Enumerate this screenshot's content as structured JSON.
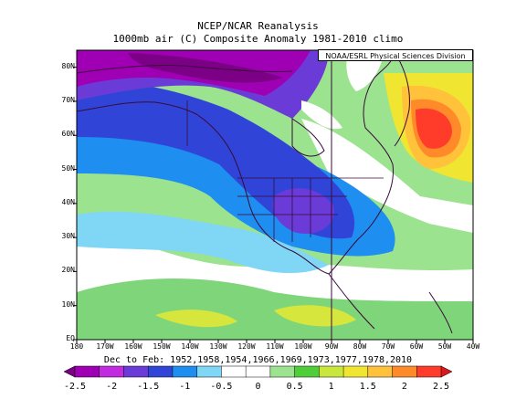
{
  "titles": {
    "line1": "NCEP/NCAR Reanalysis",
    "line2": "1000mb air (C) Composite Anomaly 1981-2010 climo",
    "credit": "NOAA/ESRL Physical Sciences Division"
  },
  "axes": {
    "lat_labels": [
      "80N",
      "70N",
      "60N",
      "50N",
      "40N",
      "30N",
      "20N",
      "10N",
      "EQ"
    ],
    "lon_labels": [
      "180",
      "170W",
      "160W",
      "150W",
      "140W",
      "130W",
      "120W",
      "110W",
      "100W",
      "90W",
      "80W",
      "70W",
      "60W",
      "50W",
      "40W"
    ],
    "lat_range": [
      0,
      85
    ],
    "lon_range": [
      -180,
      -40
    ]
  },
  "period": "Dec to Feb: 1952,1958,1954,1966,1969,1973,1977,1978,2010",
  "colorbar": {
    "labels": [
      "-2.5",
      "-2",
      "-1.5",
      "-1",
      "-0.5",
      "0",
      "0.5",
      "1",
      "1.5",
      "2",
      "2.5"
    ],
    "colors": [
      "#7b0085",
      "#a000b4",
      "#c22ce0",
      "#6b3bd8",
      "#3045d8",
      "#1e8ef0",
      "#7fd6f5",
      "#ffffff",
      "#ffffff",
      "#9be38f",
      "#4ecf3a",
      "#c8e63c",
      "#f0e632",
      "#ffc23a",
      "#ff8a2a",
      "#ff3c2a",
      "#d8191e"
    ]
  },
  "map_description": {
    "cold_anomaly_regions": [
      "Alaska",
      "Western Canada",
      "Central United States"
    ],
    "warm_anomaly_regions": [
      "Eastern Canada / Labrador Sea",
      "Tropical Eastern Pacific"
    ]
  }
}
